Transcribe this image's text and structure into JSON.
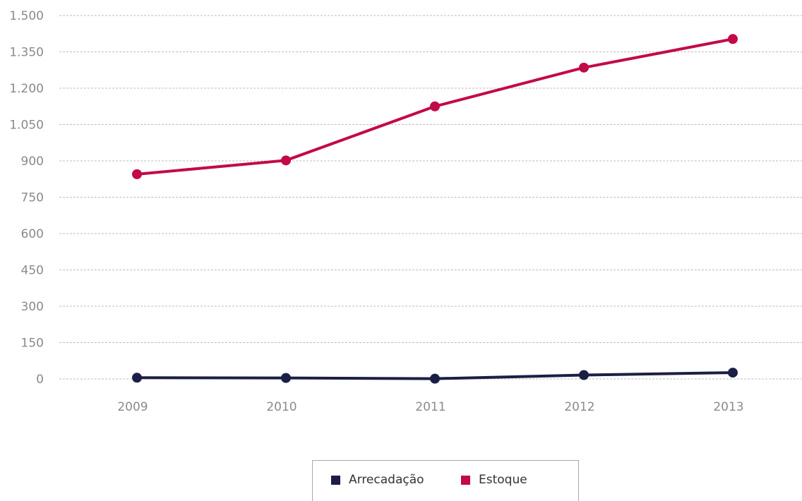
{
  "chart_data": {
    "type": "line",
    "title": "",
    "xlabel": "",
    "ylabel": "",
    "categories": [
      "2009",
      "2010",
      "2011",
      "2012",
      "2013"
    ],
    "ylim": [
      0,
      1500
    ],
    "yticks": [
      0,
      150,
      300,
      450,
      600,
      750,
      900,
      1050,
      1200,
      1350,
      1500
    ],
    "ytick_labels": [
      "0",
      "150",
      "300",
      "450",
      "600",
      "750",
      "900",
      "1.050",
      "1.200",
      "1.350",
      "1.500"
    ],
    "grid": "horizontal dashed",
    "legend_position": "bottom-center",
    "series": [
      {
        "name": "Arrecadação",
        "color": "#1b1f45",
        "values": [
          5,
          4,
          1,
          16,
          26
        ]
      },
      {
        "name": "Estoque",
        "color": "#c3094a",
        "values": [
          845,
          902,
          1125,
          1285,
          1403
        ]
      }
    ]
  }
}
